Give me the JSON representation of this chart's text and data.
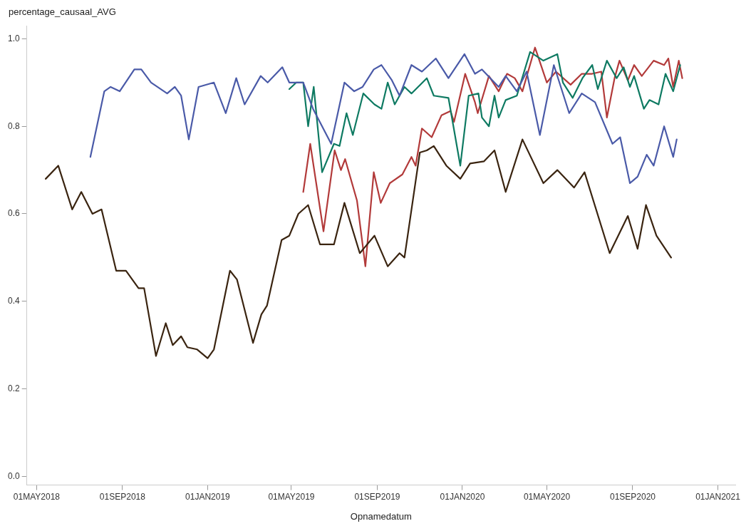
{
  "chart_data": {
    "type": "line",
    "ylabel": "percentage_causaal_AVG",
    "xlabel": "Opnamedatum",
    "xlim": [
      "2018-04-17",
      "2021-01-26"
    ],
    "ylim": [
      -0.02,
      1.03
    ],
    "xticks": [
      {
        "value": "2018-05-01",
        "label": "01MAY2018"
      },
      {
        "value": "2018-09-01",
        "label": "01SEP2018"
      },
      {
        "value": "2019-01-01",
        "label": "01JAN2019"
      },
      {
        "value": "2019-05-01",
        "label": "01MAY2019"
      },
      {
        "value": "2019-09-01",
        "label": "01SEP2019"
      },
      {
        "value": "2020-01-01",
        "label": "01JAN2020"
      },
      {
        "value": "2020-05-01",
        "label": "01MAY2020"
      },
      {
        "value": "2020-09-01",
        "label": "01SEP2020"
      },
      {
        "value": "2021-01-01",
        "label": "01JAN2021"
      }
    ],
    "yticks": [
      {
        "value": 0,
        "label": "0.0"
      },
      {
        "value": 0.2,
        "label": "0.2"
      },
      {
        "value": 0.4,
        "label": "0.4"
      },
      {
        "value": 0.6,
        "label": "0.6"
      },
      {
        "value": 0.8,
        "label": "0.8"
      },
      {
        "value": 1,
        "label": "1.0"
      }
    ],
    "grid": false,
    "legend": false,
    "marker": "none",
    "line_style": "solid",
    "series": [
      {
        "color": "#3a2410",
        "x": [
          "2018-05-14",
          "2018-06-01",
          "2018-06-21",
          "2018-07-04",
          "2018-07-20",
          "2018-08-02",
          "2018-08-23",
          "2018-09-06",
          "2018-09-24",
          "2018-10-02",
          "2018-10-19",
          "2018-11-02",
          "2018-11-12",
          "2018-11-24",
          "2018-12-03",
          "2018-12-17",
          "2019-01-01",
          "2019-01-10",
          "2019-02-02",
          "2019-02-12",
          "2019-03-07",
          "2019-03-19",
          "2019-03-27",
          "2019-04-17",
          "2019-04-28",
          "2019-05-11",
          "2019-05-25",
          "2019-06-11",
          "2019-07-01",
          "2019-07-16",
          "2019-08-07",
          "2019-08-28",
          "2019-09-16",
          "2019-10-03",
          "2019-10-10",
          "2019-11-01",
          "2019-11-11",
          "2019-11-21",
          "2019-12-09",
          "2019-12-29",
          "2020-01-12",
          "2020-02-01",
          "2020-02-16",
          "2020-03-03",
          "2020-03-27",
          "2020-04-26",
          "2020-05-16",
          "2020-06-09",
          "2020-06-24",
          "2020-07-30",
          "2020-08-25",
          "2020-09-08",
          "2020-09-20",
          "2020-10-05",
          "2020-10-26"
        ],
        "values": [
          0.68,
          0.71,
          0.61,
          0.65,
          0.6,
          0.61,
          0.47,
          0.47,
          0.43,
          0.43,
          0.275,
          0.35,
          0.3,
          0.32,
          0.295,
          0.29,
          0.27,
          0.29,
          0.47,
          0.45,
          0.305,
          0.37,
          0.39,
          0.54,
          0.55,
          0.6,
          0.62,
          0.53,
          0.53,
          0.625,
          0.51,
          0.55,
          0.48,
          0.51,
          0.5,
          0.74,
          0.745,
          0.755,
          0.71,
          0.68,
          0.715,
          0.72,
          0.745,
          0.65,
          0.77,
          0.67,
          0.7,
          0.66,
          0.695,
          0.51,
          0.595,
          0.52,
          0.62,
          0.55,
          0.5
        ]
      },
      {
        "color": "#4a5aa8",
        "x": [
          "2018-07-17",
          "2018-08-06",
          "2018-08-15",
          "2018-08-28",
          "2018-09-18",
          "2018-09-28",
          "2018-10-12",
          "2018-11-04",
          "2018-11-15",
          "2018-11-24",
          "2018-12-05",
          "2018-12-19",
          "2019-01-10",
          "2019-01-27",
          "2019-02-11",
          "2019-02-23",
          "2019-03-18",
          "2019-03-28",
          "2019-04-18",
          "2019-04-28",
          "2019-05-18",
          "2019-06-01",
          "2019-06-27",
          "2019-07-16",
          "2019-07-30",
          "2019-08-11",
          "2019-08-27",
          "2019-09-07",
          "2019-09-22",
          "2019-10-03",
          "2019-10-20",
          "2019-11-04",
          "2019-11-24",
          "2019-12-12",
          "2020-01-04",
          "2020-01-19",
          "2020-01-29",
          "2020-02-22",
          "2020-03-03",
          "2020-03-19",
          "2020-04-02",
          "2020-04-21",
          "2020-05-11",
          "2020-06-02",
          "2020-06-20",
          "2020-07-09",
          "2020-08-03",
          "2020-08-14",
          "2020-08-28",
          "2020-09-08",
          "2020-09-21",
          "2020-10-01",
          "2020-10-16",
          "2020-10-29",
          "2020-11-03"
        ],
        "values": [
          0.73,
          0.88,
          0.89,
          0.88,
          0.93,
          0.93,
          0.9,
          0.875,
          0.89,
          0.87,
          0.77,
          0.89,
          0.9,
          0.83,
          0.91,
          0.85,
          0.915,
          0.9,
          0.935,
          0.9,
          0.9,
          0.84,
          0.76,
          0.9,
          0.88,
          0.89,
          0.93,
          0.94,
          0.905,
          0.87,
          0.94,
          0.925,
          0.955,
          0.91,
          0.965,
          0.92,
          0.93,
          0.89,
          0.915,
          0.88,
          0.925,
          0.78,
          0.94,
          0.83,
          0.875,
          0.855,
          0.76,
          0.775,
          0.67,
          0.685,
          0.735,
          0.71,
          0.8,
          0.73,
          0.77
        ]
      },
      {
        "color": "#0e7a62",
        "x": [
          "2019-04-28",
          "2019-05-08",
          "2019-05-18",
          "2019-05-25",
          "2019-06-02",
          "2019-06-14",
          "2019-07-01",
          "2019-07-09",
          "2019-07-19",
          "2019-07-28",
          "2019-08-12",
          "2019-08-28",
          "2019-09-07",
          "2019-09-16",
          "2019-09-26",
          "2019-10-10",
          "2019-10-20",
          "2019-11-11",
          "2019-11-21",
          "2019-12-12",
          "2019-12-29",
          "2020-01-10",
          "2020-01-24",
          "2020-01-29",
          "2020-02-08",
          "2020-02-16",
          "2020-02-22",
          "2020-03-03",
          "2020-03-19",
          "2020-04-07",
          "2020-04-26",
          "2020-05-16",
          "2020-05-24",
          "2020-06-07",
          "2020-06-21",
          "2020-07-05",
          "2020-07-13",
          "2020-07-26",
          "2020-08-09",
          "2020-08-19",
          "2020-08-28",
          "2020-09-03",
          "2020-09-17",
          "2020-09-25",
          "2020-10-08",
          "2020-10-18",
          "2020-10-29",
          "2020-11-08"
        ],
        "values": [
          0.885,
          0.9,
          0.9,
          0.8,
          0.89,
          0.695,
          0.76,
          0.755,
          0.83,
          0.78,
          0.875,
          0.85,
          0.84,
          0.9,
          0.85,
          0.89,
          0.875,
          0.91,
          0.87,
          0.865,
          0.71,
          0.87,
          0.875,
          0.82,
          0.8,
          0.87,
          0.82,
          0.86,
          0.87,
          0.97,
          0.95,
          0.965,
          0.9,
          0.865,
          0.91,
          0.94,
          0.885,
          0.95,
          0.91,
          0.935,
          0.89,
          0.915,
          0.84,
          0.86,
          0.85,
          0.92,
          0.88,
          0.94
        ]
      },
      {
        "color": "#b23a3a",
        "x": [
          "2019-05-18",
          "2019-05-28",
          "2019-06-16",
          "2019-07-02",
          "2019-07-11",
          "2019-07-17",
          "2019-08-03",
          "2019-08-15",
          "2019-08-27",
          "2019-09-06",
          "2019-09-19",
          "2019-10-07",
          "2019-10-20",
          "2019-10-26",
          "2019-11-04",
          "2019-11-18",
          "2019-12-02",
          "2019-12-15",
          "2019-12-20",
          "2020-01-05",
          "2020-01-19",
          "2020-01-23",
          "2020-02-08",
          "2020-02-22",
          "2020-03-05",
          "2020-03-16",
          "2020-03-27",
          "2020-04-14",
          "2020-05-01",
          "2020-05-14",
          "2020-06-04",
          "2020-06-20",
          "2020-07-05",
          "2020-07-18",
          "2020-07-26",
          "2020-08-06",
          "2020-08-13",
          "2020-08-25",
          "2020-09-03",
          "2020-09-14",
          "2020-10-01",
          "2020-10-16",
          "2020-10-22",
          "2020-10-29",
          "2020-11-06",
          "2020-11-11"
        ],
        "values": [
          0.65,
          0.76,
          0.56,
          0.745,
          0.7,
          0.725,
          0.63,
          0.48,
          0.695,
          0.625,
          0.67,
          0.69,
          0.73,
          0.71,
          0.795,
          0.775,
          0.825,
          0.835,
          0.81,
          0.92,
          0.855,
          0.83,
          0.915,
          0.88,
          0.92,
          0.91,
          0.88,
          0.98,
          0.9,
          0.925,
          0.895,
          0.92,
          0.92,
          0.925,
          0.82,
          0.91,
          0.95,
          0.905,
          0.94,
          0.915,
          0.95,
          0.94,
          0.955,
          0.89,
          0.95,
          0.91
        ]
      }
    ]
  }
}
